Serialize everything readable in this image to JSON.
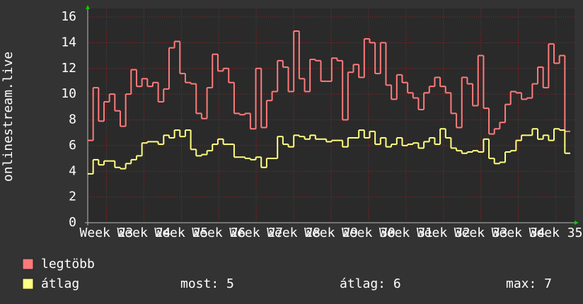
{
  "chart_data": {
    "type": "step-line",
    "y_label": "onlinestream.live",
    "xlim": [
      22.5,
      35.5
    ],
    "xticks": [
      {
        "value": 23,
        "label": "Week 23"
      },
      {
        "value": 24,
        "label": "Week 24"
      },
      {
        "value": 25,
        "label": "Week 25"
      },
      {
        "value": 26,
        "label": "Week 26"
      },
      {
        "value": 27,
        "label": "Week 27"
      },
      {
        "value": 28,
        "label": "Week 28"
      },
      {
        "value": 29,
        "label": "Week 29"
      },
      {
        "value": 30,
        "label": "Week 30"
      },
      {
        "value": 31,
        "label": "Week 31"
      },
      {
        "value": 32,
        "label": "Week 32"
      },
      {
        "value": 33,
        "label": "Week 33"
      },
      {
        "value": 34,
        "label": "Week 34"
      },
      {
        "value": 35,
        "label": "Week 35"
      }
    ],
    "ylim": [
      0,
      16
    ],
    "yticks": [
      0,
      2,
      4,
      6,
      8,
      10,
      12,
      14,
      16
    ],
    "grid": true,
    "series": [
      {
        "name": "legtöbb",
        "color": "#ff7a7a",
        "values": [
          6.4,
          10.5,
          7.9,
          9.4,
          10,
          8.7,
          7.5,
          10,
          11.9,
          10.6,
          11.2,
          10.6,
          10.9,
          9.4,
          10.4,
          13.6,
          14.1,
          11.6,
          10.9,
          10.8,
          8.5,
          8.1,
          10.5,
          13.1,
          11.8,
          12,
          10.9,
          8.5,
          8.4,
          8.5,
          7.3,
          12,
          7.4,
          9.5,
          10.2,
          12.6,
          12.1,
          10.2,
          14.9,
          11.2,
          10.2,
          12.7,
          12.6,
          11,
          11,
          12.8,
          12.6,
          8,
          11.7,
          12.3,
          11.3,
          14.3,
          14,
          11.6,
          14,
          10.7,
          9.6,
          11.5,
          10.9,
          10.1,
          9.7,
          8.8,
          10.1,
          10.6,
          11.3,
          10.6,
          10.1,
          8.5,
          7.4,
          11.3,
          10.8,
          9.1,
          13,
          8.9,
          6.9,
          7.3,
          7.8,
          9.2,
          10.2,
          10.1,
          9.6,
          9.7,
          10.8,
          12.1,
          10.5,
          13.9,
          12.4,
          13,
          7.1
        ]
      },
      {
        "name": "átlag",
        "color": "#ffff80",
        "values": [
          3.8,
          4.9,
          4.5,
          4.8,
          4.8,
          4.3,
          4.2,
          4.6,
          4.9,
          5.2,
          6.2,
          6.3,
          6.3,
          6.1,
          6.8,
          6.6,
          7.2,
          6.7,
          7.2,
          5.7,
          5.2,
          5.3,
          5.6,
          6.1,
          6.5,
          6.1,
          6.1,
          5.1,
          5.1,
          5.0,
          4.9,
          5.1,
          4.3,
          5.0,
          5.0,
          6.7,
          6.1,
          5.9,
          6.8,
          6.7,
          6.5,
          6.8,
          6.5,
          6.5,
          6.3,
          6.4,
          6.4,
          5.9,
          6.6,
          6.6,
          7.2,
          6.6,
          7.1,
          6.1,
          6.6,
          5.9,
          6.1,
          6.6,
          6.0,
          6.1,
          6.2,
          5.8,
          6.3,
          6.6,
          6.1,
          7.3,
          6.6,
          5.8,
          5.6,
          5.4,
          5.5,
          5.6,
          5.5,
          6.5,
          5.0,
          4.6,
          4.7,
          5.5,
          5.6,
          6.4,
          6.8,
          6.8,
          7.3,
          6.5,
          6.8,
          6.4,
          7.3,
          7.2,
          5.4
        ]
      }
    ],
    "legend_stats": [
      "most: 5",
      "átlag: 6",
      "max: 7"
    ]
  }
}
